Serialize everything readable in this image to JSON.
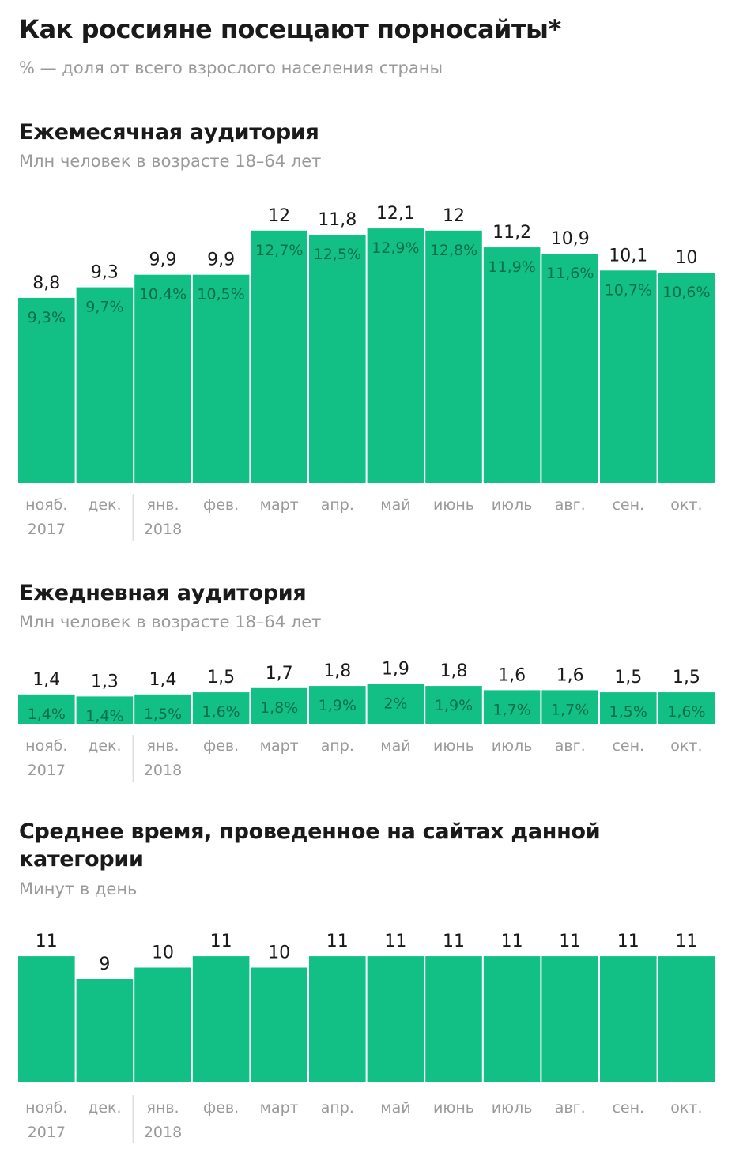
{
  "header": {
    "title": "Как россияне посещают порносайты*",
    "subtitle": "% — доля от всего взрослого населения страны"
  },
  "chart_data": [
    {
      "type": "bar",
      "title": "Ежемесячная аудитория",
      "subtitle": "Млн человек в возрасте 18–64 лет",
      "categories": [
        "нояб.",
        "дек.",
        "янв.",
        "фев.",
        "март",
        "апр.",
        "май",
        "июнь",
        "июль",
        "авг.",
        "сен.",
        "окт."
      ],
      "year_labels": [
        "2017",
        "",
        "2018",
        "",
        "",
        "",
        "",
        "",
        "",
        "",
        "",
        ""
      ],
      "values": [
        8.8,
        9.3,
        9.9,
        9.9,
        12,
        11.8,
        12.1,
        12,
        11.2,
        10.9,
        10.1,
        10
      ],
      "value_labels": [
        "8,8",
        "9,3",
        "9,9",
        "9,9",
        "12",
        "11,8",
        "12,1",
        "12",
        "11,2",
        "10,9",
        "10,1",
        "10"
      ],
      "share_labels": [
        "9,3%",
        "9,7%",
        "10,4%",
        "10,5%",
        "12,7%",
        "12,5%",
        "12,9%",
        "12,8%",
        "11,9%",
        "11,6%",
        "10,7%",
        "10,6%"
      ],
      "ylim": [
        0,
        12.1
      ]
    },
    {
      "type": "bar",
      "title": "Ежедневная аудитория",
      "subtitle": "Млн человек в возрасте 18–64 лет",
      "categories": [
        "нояб.",
        "дек.",
        "янв.",
        "фев.",
        "март",
        "апр.",
        "май",
        "июнь",
        "июль",
        "авг.",
        "сен.",
        "окт."
      ],
      "year_labels": [
        "2017",
        "",
        "2018",
        "",
        "",
        "",
        "",
        "",
        "",
        "",
        "",
        ""
      ],
      "values": [
        1.4,
        1.3,
        1.4,
        1.5,
        1.7,
        1.8,
        1.9,
        1.8,
        1.6,
        1.6,
        1.5,
        1.5
      ],
      "value_labels": [
        "1,4",
        "1,3",
        "1,4",
        "1,5",
        "1,7",
        "1,8",
        "1,9",
        "1,8",
        "1,6",
        "1,6",
        "1,5",
        "1,5"
      ],
      "share_labels": [
        "1,4%",
        "1,4%",
        "1,5%",
        "1,6%",
        "1,8%",
        "1,9%",
        "2%",
        "1,9%",
        "1,7%",
        "1,7%",
        "1,5%",
        "1,6%"
      ],
      "ylim": [
        0,
        12.1
      ]
    },
    {
      "type": "bar",
      "title": "Среднее время, проведенное на сайтах данной категории",
      "subtitle": "Минут в день",
      "categories": [
        "нояб.",
        "дек.",
        "янв.",
        "фев.",
        "март",
        "апр.",
        "май",
        "июнь",
        "июль",
        "авг.",
        "сен.",
        "окт."
      ],
      "year_labels": [
        "2017",
        "",
        "2018",
        "",
        "",
        "",
        "",
        "",
        "",
        "",
        "",
        ""
      ],
      "values": [
        11,
        9,
        10,
        11,
        10,
        11,
        11,
        11,
        11,
        11,
        11,
        11
      ],
      "value_labels": [
        "11",
        "9",
        "10",
        "11",
        "10",
        "11",
        "11",
        "11",
        "11",
        "11",
        "11",
        "11"
      ],
      "share_labels": [],
      "ylim": [
        0,
        11
      ]
    }
  ]
}
